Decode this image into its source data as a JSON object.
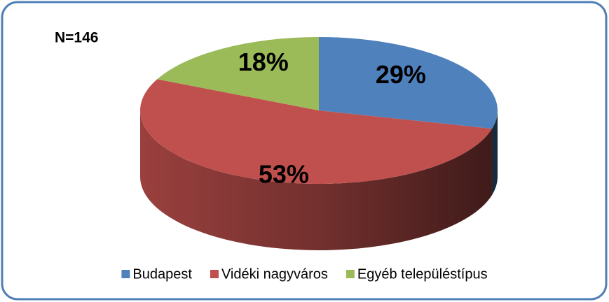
{
  "chart_data": {
    "type": "pie3d",
    "annotation": "N=146",
    "categories": [
      "Budapest",
      "Vidéki nagyváros",
      "Egyéb településtípus"
    ],
    "values": [
      29,
      53,
      18
    ],
    "value_labels": [
      "29%",
      "53%",
      "18%"
    ],
    "colors": [
      "#4f81bd",
      "#c0504d",
      "#9bbb59"
    ],
    "legend": "bottom"
  }
}
